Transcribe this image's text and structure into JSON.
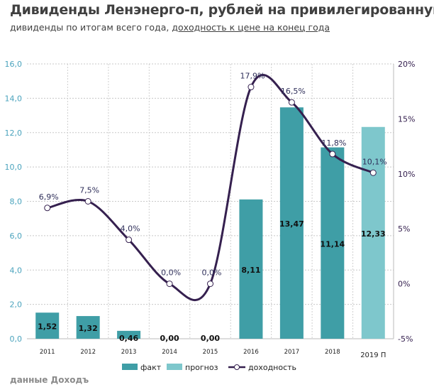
{
  "title": "Дивиденды Ленэнерго-п, рублей на привилегированную акцию",
  "subtitle_plain": "дивиденды по итогам всего года, ",
  "subtitle_underlined": "доходность к цене на конец года",
  "source": "данные Доходъ",
  "colors": {
    "fact": "#3f9ea6",
    "forecast": "#7ec7cc",
    "yield_line": "#35204f",
    "left_axis": "#4aa3bd",
    "right_axis": "#35204f",
    "labels": "#2f2f5a"
  },
  "chart_data": {
    "type": "bar+line",
    "categories": [
      "2011",
      "2012",
      "2013",
      "2014",
      "2015",
      "2016",
      "2017",
      "2018",
      "2019 П"
    ],
    "series": [
      {
        "name": "факт",
        "type": "bar",
        "axis": "left",
        "values": [
          1.52,
          1.32,
          0.46,
          0.0,
          0.0,
          8.11,
          13.47,
          11.14,
          null
        ],
        "labels": [
          "1,52",
          "1,32",
          "0,46",
          "0,00",
          "0,00",
          "8,11",
          "13,47",
          "11,14",
          ""
        ]
      },
      {
        "name": "прогноз",
        "type": "bar",
        "axis": "left",
        "values": [
          null,
          null,
          null,
          null,
          null,
          null,
          null,
          null,
          12.33
        ],
        "labels": [
          "",
          "",
          "",
          "",
          "",
          "",
          "",
          "",
          "12,33"
        ]
      },
      {
        "name": "доходность",
        "type": "line",
        "axis": "right",
        "values": [
          6.9,
          7.5,
          4.0,
          0.0,
          0.0,
          17.9,
          16.5,
          11.8,
          10.1
        ],
        "labels": [
          "6,9%",
          "7,5%",
          "4,0%",
          "0,0%",
          "0,0%",
          "17,9%",
          "16,5%",
          "11,8%",
          "10,1%"
        ]
      }
    ],
    "left_axis": {
      "range": [
        0,
        16
      ],
      "ticks": [
        "0,0",
        "2,0",
        "4,0",
        "6,0",
        "8,0",
        "10,0",
        "12,0",
        "14,0",
        "16,0"
      ]
    },
    "right_axis": {
      "range": [
        -5,
        20
      ],
      "ticks": [
        "-5%",
        "0%",
        "5%",
        "10%",
        "15%",
        "20%"
      ]
    },
    "grid": true,
    "legend_position": "bottom",
    "legend": [
      "факт",
      "прогноз",
      "доходность"
    ]
  }
}
